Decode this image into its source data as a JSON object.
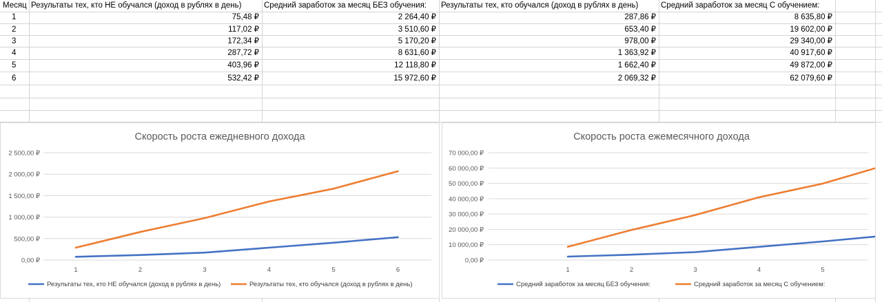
{
  "table": {
    "headers": [
      "Месяц",
      "Результаты тех, кто НЕ обучался (доход в рублях в день)",
      "Средний заработок за месяц БЕЗ обучения:",
      "Результаты тех, кто обучался (доход в рублях в день)",
      "Средний заработок за месяц С обучением:"
    ],
    "rows": [
      [
        "1",
        "75,48 ₽",
        "2 264,40 ₽",
        "287,86 ₽",
        "8 635,80 ₽"
      ],
      [
        "2",
        "117,02 ₽",
        "3 510,60 ₽",
        "653,40 ₽",
        "19 602,00 ₽"
      ],
      [
        "3",
        "172,34 ₽",
        "5 170,20 ₽",
        "978,00 ₽",
        "29 340,00 ₽"
      ],
      [
        "4",
        "287,72 ₽",
        "8 631,60 ₽",
        "1 363,92 ₽",
        "40 917,60 ₽"
      ],
      [
        "5",
        "403,96 ₽",
        "12 118,80 ₽",
        "1 662,40 ₽",
        "49 872,00 ₽"
      ],
      [
        "6",
        "532,42 ₽",
        "15 972,60 ₽",
        "2 069,32 ₽",
        "62 079,60 ₽"
      ]
    ]
  },
  "colors": {
    "series1": "#4472c4",
    "series2": "#ed7d31",
    "grid": "#d9d9d9"
  },
  "chart_data": [
    {
      "type": "line",
      "title": "Скорость роста ежедневного дохода",
      "categories": [
        "1",
        "2",
        "3",
        "4",
        "5",
        "6"
      ],
      "ylim": [
        0,
        2500
      ],
      "ytick_labels": [
        "0,00 ₽",
        "500,00 ₽",
        "1 000,00 ₽",
        "1 500,00 ₽",
        "2 000,00 ₽",
        "2 500,00 ₽"
      ],
      "series": [
        {
          "name": "Результаты тех, кто НЕ обучался (доход в рублях в день)",
          "values": [
            75.48,
            117.02,
            172.34,
            287.72,
            403.96,
            532.42
          ]
        },
        {
          "name": "Результаты тех, кто обучался (доход в рублях в день)",
          "values": [
            287.86,
            653.4,
            978.0,
            1363.92,
            1662.4,
            2069.32
          ]
        }
      ]
    },
    {
      "type": "line",
      "title": "Скорость роста ежемесячного дохода",
      "categories": [
        "1",
        "2",
        "3",
        "4",
        "5",
        "6"
      ],
      "ylim": [
        0,
        70000
      ],
      "ytick_labels": [
        "0,00 ₽",
        "10 000,00 ₽",
        "20 000,00 ₽",
        "30 000,00 ₽",
        "40 000,00 ₽",
        "50 000,00 ₽",
        "60 000,00 ₽",
        "70 000,00 ₽"
      ],
      "series": [
        {
          "name": "Средний заработок за месяц БЕЗ обучения:",
          "values": [
            2264.4,
            3510.6,
            5170.2,
            8631.6,
            12118.8,
            15972.6
          ]
        },
        {
          "name": "Средний заработок за месяц С обучением:",
          "values": [
            8635.8,
            19602.0,
            29340.0,
            40917.6,
            49872.0,
            62079.6
          ]
        }
      ]
    }
  ]
}
